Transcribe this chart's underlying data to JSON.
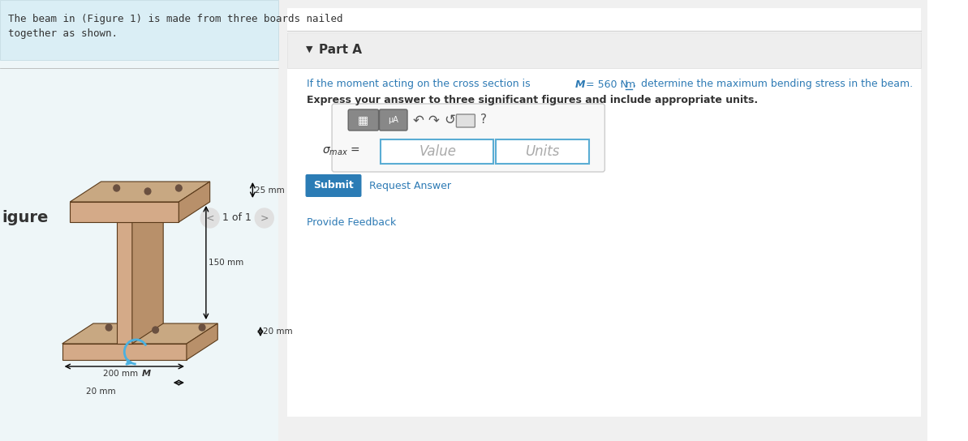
{
  "bg_color_left": "#eef6f8",
  "bg_color_right": "#f5f5f5",
  "bg_color_white": "#ffffff",
  "text_problem": "The beam in (Figure 1) is made from three boards nailed\ntogether as shown.",
  "text_figure_label": "igure",
  "text_nav": "1 of 1",
  "part_a_label": "Part A",
  "question_text_blue": "If the moment acting on the cross section is ",
  "question_math": "M = 560 N·m,",
  "question_text_end": " determine the maximum bending stress in the beam.",
  "question_bold": "Express your answer to three significant figures and include appropriate units.",
  "sigma_label": "σmax =",
  "value_placeholder": "Value",
  "units_placeholder": "Units",
  "submit_text": "Submit",
  "request_answer_text": "Request Answer",
  "provide_feedback_text": "Provide Feedback",
  "dim_25mm": "25 mm",
  "dim_150mm": "150 mm",
  "dim_20mm_right": "20 mm",
  "dim_200mm": "200 mm",
  "dim_20mm_bottom": "20 mm",
  "dim_M": "M",
  "blue_color": "#2e7bb5",
  "teal_color": "#2b8a8a",
  "submit_bg": "#2b7cb5",
  "divider_color": "#cccccc",
  "input_border": "#5aadd4",
  "toolbar_bg": "#e0e0e0",
  "toolbar_border": "#bbbbbb"
}
